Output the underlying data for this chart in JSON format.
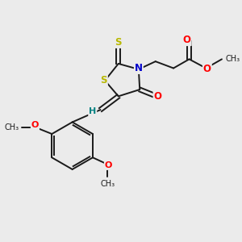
{
  "background_color": "#ebebeb",
  "bond_color": "#1a1a1a",
  "atom_colors": {
    "S": "#b8b800",
    "N": "#0000cc",
    "O": "#ff0000",
    "H": "#008080",
    "C": "#1a1a1a"
  },
  "figsize": [
    3.0,
    3.0
  ],
  "dpi": 100,
  "xlim": [
    0,
    10
  ],
  "ylim": [
    0,
    10
  ]
}
